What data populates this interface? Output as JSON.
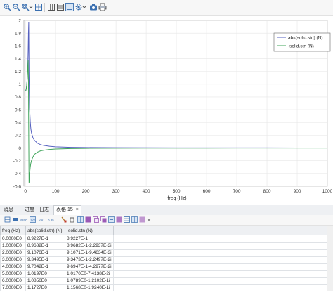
{
  "toolbar": {
    "icons": [
      "zoom-in-icon",
      "zoom-out-icon",
      "zoom-box-icon",
      "zoom-extents-icon",
      "grid-icon",
      "legend-icon",
      "axis-icon",
      "settings-icon",
      "camera-icon",
      "print-icon"
    ]
  },
  "chart_data": {
    "type": "line",
    "xlabel": "freq (Hz)",
    "ylabel": "",
    "xlim": [
      -5,
      1000
    ],
    "ylim": [
      -0.6,
      2.0
    ],
    "x_ticks": [
      "0",
      "100",
      "200",
      "300",
      "400",
      "500",
      "600",
      "700",
      "800",
      "900",
      "1000"
    ],
    "y_ticks": [
      "-0.6",
      "-0.4",
      "-0.2",
      "0",
      "0.2",
      "0.4",
      "0.6",
      "0.8",
      "1",
      "1.2",
      "1.4",
      "1.6",
      "1.8",
      "2"
    ],
    "grid": true,
    "legend_position": "top-right",
    "series": [
      {
        "name": "abs(solid.stn) (N)",
        "color": "#5560c0",
        "x": [
          0,
          1,
          2,
          3,
          4,
          5,
          6,
          7,
          8,
          9,
          10,
          11,
          12,
          13,
          14,
          16,
          18,
          20,
          25,
          30,
          40,
          50,
          60,
          80,
          100,
          150,
          200,
          300,
          400,
          500,
          600,
          700,
          800,
          900,
          1000
        ],
        "y": [
          0.892,
          0.897,
          0.911,
          0.935,
          0.97,
          1.02,
          1.09,
          1.18,
          1.31,
          1.5,
          1.8,
          1.97,
          1.2,
          0.85,
          0.62,
          0.42,
          0.3,
          0.24,
          0.16,
          0.12,
          0.075,
          0.052,
          0.04,
          0.026,
          0.018,
          0.01,
          0.007,
          0.004,
          0.003,
          0.002,
          0.002,
          0.0015,
          0.0012,
          0.001,
          0.001
        ]
      },
      {
        "name": "-solid.stn (N)",
        "color": "#3fa45a",
        "x": [
          0,
          1,
          2,
          3,
          4,
          5,
          6,
          7,
          8,
          9,
          10,
          11,
          12,
          13,
          14,
          16,
          18,
          20,
          25,
          30,
          40,
          50,
          60,
          80,
          100,
          150,
          200,
          300,
          400,
          500,
          600,
          700,
          800,
          900,
          1000
        ],
        "y": [
          0.892,
          0.897,
          0.911,
          0.935,
          0.97,
          1.02,
          1.09,
          1.18,
          1.28,
          1.38,
          1.1,
          0.2,
          -0.55,
          -0.5,
          -0.4,
          -0.3,
          -0.24,
          -0.2,
          -0.14,
          -0.1,
          -0.065,
          -0.045,
          -0.035,
          -0.023,
          -0.016,
          -0.009,
          -0.006,
          -0.004,
          -0.003,
          -0.002,
          -0.002,
          -0.0015,
          -0.0012,
          -0.001,
          -0.001
        ]
      }
    ]
  },
  "tabs": [
    {
      "label": "消息"
    },
    {
      "label": "进度"
    },
    {
      "label": "日志"
    },
    {
      "label": "表格 15",
      "active": true,
      "close": "×"
    }
  ],
  "table": {
    "headers": [
      "freq (Hz)",
      "abs(solid.stn) (N)",
      "-solid.stn (N)"
    ],
    "rows": [
      [
        "0.0000E0",
        "8.9227E-1",
        "8.9227E-1"
      ],
      [
        "1.0000E0",
        "8.9682E-1",
        "8.9682E-1-2.2937E-3i"
      ],
      [
        "2.0000E0",
        "9.1076E-1",
        "9.1071E-1-9.4634E-3i"
      ],
      [
        "3.0000E0",
        "9.3495E-1",
        "9.3473E-1-2.2497E-2i"
      ],
      [
        "4.0000E0",
        "9.7042E-1",
        "9.6947E-1-4.2977E-2i"
      ],
      [
        "5.0000E0",
        "1.0197E0",
        "1.0170E0-7.4138E-2i"
      ],
      [
        "6.0000E0",
        "1.0856E0",
        "1.0789E0-1.2102E-1i"
      ],
      [
        "7.0000E0",
        "1.1727E0",
        "1.1568E0-1.9240E-1i"
      ]
    ]
  }
}
